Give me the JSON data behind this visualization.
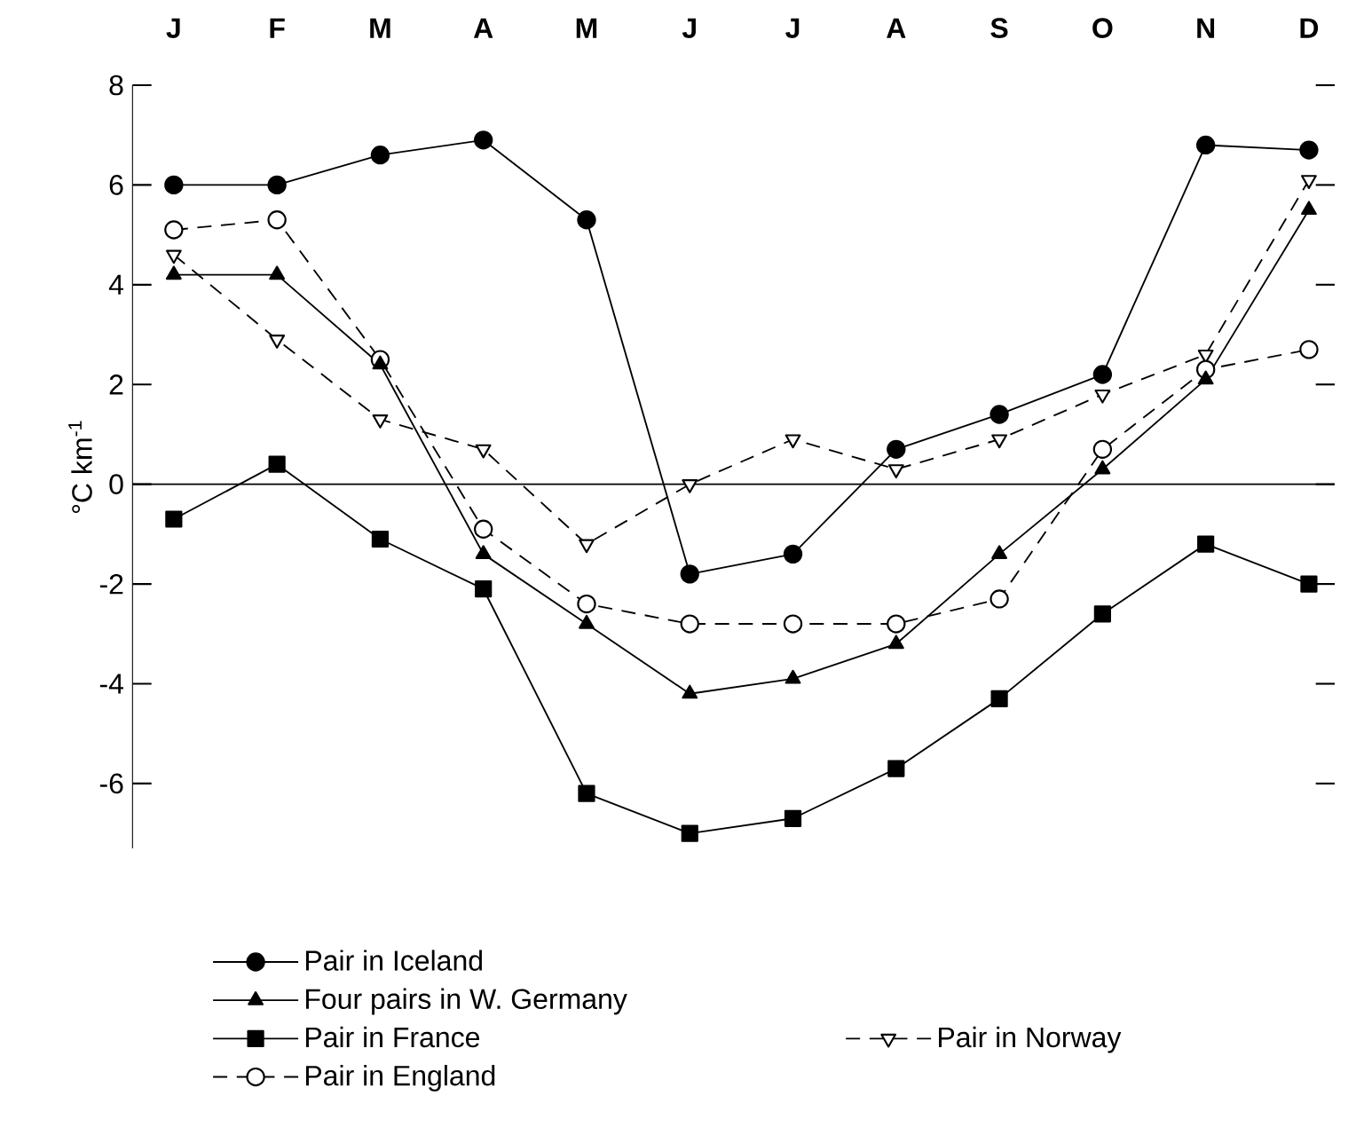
{
  "chart_data": {
    "type": "line",
    "ylabel": "°C km$^{-1}$",
    "categories": [
      "J",
      "F",
      "M",
      "A",
      "M",
      "J",
      "J",
      "A",
      "S",
      "O",
      "N",
      "D"
    ],
    "ylim": [
      -7.3,
      8
    ],
    "yticks": [
      -6,
      -4,
      -2,
      0,
      2,
      4,
      6,
      8
    ],
    "legend": "bottom",
    "grid": false,
    "ref_lines": [
      {
        "axis": "y",
        "value": 0
      }
    ],
    "series": [
      {
        "name": "Pair in Iceland",
        "color": "#000000",
        "marker": "circle",
        "line_style": "solid",
        "values": [
          6,
          6,
          6.6,
          6.9,
          5.3,
          -1.8,
          -1.4,
          0.7,
          1.4,
          2.2,
          6.8,
          6.7
        ]
      },
      {
        "name": "Four pairs in W. Germany",
        "color": "#000000",
        "marker": "triangle",
        "line_style": "solid",
        "values": [
          4.2,
          4.2,
          2.4,
          -1.4,
          -2.8,
          -4.2,
          -3.9,
          -3.2,
          -1.4,
          0.3,
          2.1,
          5.5
        ]
      },
      {
        "name": "Pair in France",
        "color": "#000000",
        "marker": "square",
        "line_style": "solid",
        "values": [
          -0.7,
          0.4,
          -1.1,
          -2.1,
          -6.2,
          -7.0,
          -6.7,
          -5.7,
          -4.3,
          -2.6,
          -1.2,
          -2.0
        ]
      },
      {
        "name": "Pair in England",
        "color": "#000000",
        "marker": "circle",
        "line_style": "dashed",
        "values": [
          5.1,
          5.3,
          2.5,
          -0.9,
          -2.4,
          -2.8,
          -2.8,
          -2.8,
          -2.3,
          0.7,
          2.3,
          2.7
        ]
      },
      {
        "name": "Pair in Norway",
        "color": "#000000",
        "marker": "triangle",
        "line_style": "dashed",
        "values": [
          4.6,
          2.9,
          1.3,
          0.7,
          -1.2,
          0.0,
          0.9,
          0.3,
          0.9,
          1.8,
          2.6,
          6.1
        ]
      }
    ]
  }
}
